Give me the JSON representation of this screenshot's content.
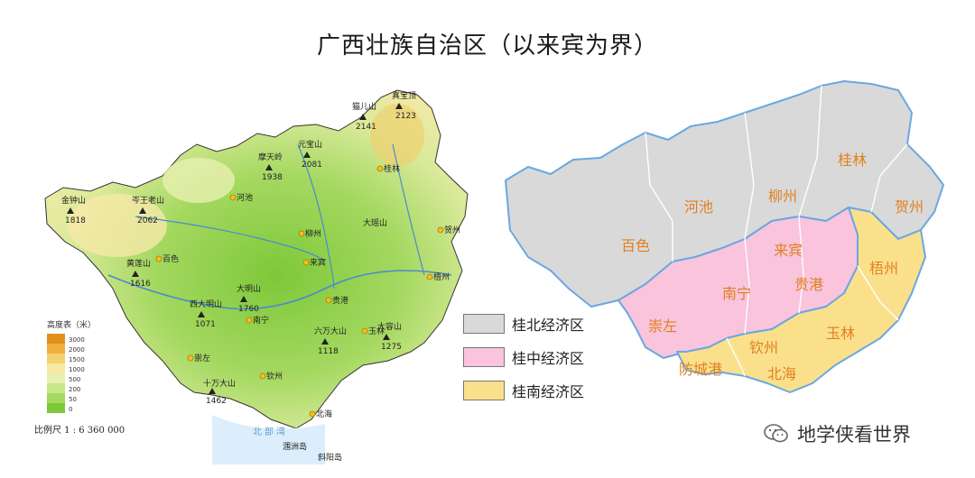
{
  "title": "广西壮族自治区（以来宾为界）",
  "colors": {
    "north": "#d9d9d9",
    "central": "#f9c4dc",
    "south": "#fbe08c",
    "border": "#6aa8e0",
    "region_label": "#e08020",
    "terrain_low": "#8ccf3a",
    "terrain_mid": "#d9ea9a",
    "terrain_high": "#f0b040",
    "sea": "#5aa0d8"
  },
  "legend": [
    {
      "label": "桂北经济区",
      "color": "#d9d9d9"
    },
    {
      "label": "桂中经济区",
      "color": "#f9c4dc"
    },
    {
      "label": "桂南经济区",
      "color": "#fbe08c"
    }
  ],
  "regions": {
    "baise": "百色",
    "hechi": "河池",
    "liuzhou": "柳州",
    "guilin": "桂林",
    "hezhou": "贺州",
    "laibin": "来宾",
    "nanning": "南宁",
    "guigang": "贵港",
    "wuzhou": "梧州",
    "chongzuo": "崇左",
    "yulin": "玉林",
    "qinzhou": "钦州",
    "fangchenggang": "防城港",
    "beihai": "北海"
  },
  "topo_labels": {
    "hechi": "河池",
    "liuzhou": "柳州",
    "guilin": "桂林",
    "hezhou": "贺州",
    "baise": "百色",
    "laibin": "来宾",
    "nanning": "南宁",
    "guigang": "贵港",
    "wuzhou": "梧州",
    "chongzuo": "崇左",
    "yulin": "玉林",
    "qinzhou": "钦州",
    "beihai": "北海",
    "beibu_gulf": "北部湾",
    "weizhou": "涠洲岛",
    "xieyang": "斜阳岛",
    "jinzhong_shan": "金钟山",
    "jinzhong_shan_h": "1818",
    "cenwang_shan": "岑王老山",
    "cenwang_shan_h": "2062",
    "huangnong_shan": "黄莲山",
    "huangnong_shan_h": "1616",
    "dadong_shan": "大明山",
    "dadong_shan_h": "1760",
    "xidaming_shan": "西大明山",
    "xidaming_shan_h": "1071",
    "shiwan_shan": "十万大山",
    "shiwan_shan_h": "1462",
    "mao_er_shan": "猫儿山",
    "mao_er_shan_h": "2141",
    "zhenbao": "真宝顶",
    "zhenbao_h": "2123",
    "yuanbao_shan": "元宝山",
    "yuanbao_shan_h": "2081",
    "dayao_shan": "大瑶山",
    "damiao_shan": "摩天岭",
    "damiao_shan_h": "1938",
    "liuwan_shan": "六万大山",
    "liuwan_shan_h": "1118",
    "dayang": "大容山",
    "dayang_h": "1275"
  },
  "elevation_legend": {
    "title": "高度表（米）",
    "levels": [
      {
        "value": "3000",
        "color": "#e0901a"
      },
      {
        "value": "2000",
        "color": "#f0b040"
      },
      {
        "value": "1500",
        "color": "#f5d070"
      },
      {
        "value": "1000",
        "color": "#f6e9a8"
      },
      {
        "value": "500",
        "color": "#e8f0b0"
      },
      {
        "value": "200",
        "color": "#c8e68a"
      },
      {
        "value": "50",
        "color": "#a4d860"
      },
      {
        "value": "0",
        "color": "#7ec83a"
      }
    ]
  },
  "scale": "比例尺  1 : 6 360 000",
  "watermark": "地学侠看世界"
}
